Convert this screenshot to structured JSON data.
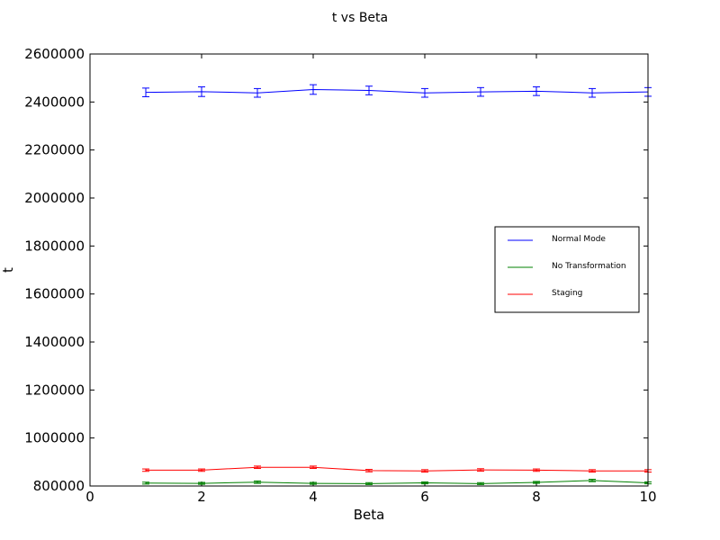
{
  "chart_data": {
    "type": "line",
    "title": "t vs Beta",
    "xlabel": "Beta",
    "ylabel": "t",
    "xlim": [
      0,
      10
    ],
    "ylim": [
      800000,
      2600000
    ],
    "x_ticks": [
      0,
      2,
      4,
      6,
      8,
      10
    ],
    "y_ticks": [
      800000,
      1000000,
      1200000,
      1400000,
      1600000,
      1800000,
      2000000,
      2200000,
      2400000,
      2600000
    ],
    "x_tick_labels": [
      "0",
      "2",
      "4",
      "6",
      "8",
      "10"
    ],
    "y_tick_labels": [
      "800000",
      "1000000",
      "1200000",
      "1400000",
      "1600000",
      "1800000",
      "2000000",
      "2200000",
      "2400000",
      "2600000"
    ],
    "grid": false,
    "legend_position": "right",
    "x": [
      1,
      2,
      3,
      4,
      5,
      6,
      7,
      8,
      9,
      10
    ],
    "series": [
      {
        "name": "Normal Mode",
        "color": "#0000ff",
        "values": [
          2440000,
          2443000,
          2438000,
          2452000,
          2448000,
          2438000,
          2442000,
          2445000,
          2438000,
          2442000
        ],
        "errors": [
          18000,
          20000,
          18000,
          20000,
          18000,
          18000,
          18000,
          18000,
          18000,
          18000
        ]
      },
      {
        "name": "No Transformation",
        "color": "#008000",
        "values": [
          812000,
          811000,
          816000,
          811000,
          810000,
          813000,
          810000,
          815000,
          823000,
          813000
        ],
        "errors": [
          4000,
          4000,
          5000,
          4000,
          4000,
          4000,
          4000,
          4000,
          5000,
          4000
        ]
      },
      {
        "name": "Staging",
        "color": "#ff0000",
        "values": [
          866000,
          866000,
          878000,
          878000,
          864000,
          863000,
          867000,
          866000,
          863000,
          863000
        ],
        "errors": [
          5000,
          5000,
          5000,
          5000,
          5000,
          5000,
          5000,
          5000,
          5000,
          5000
        ]
      }
    ]
  }
}
